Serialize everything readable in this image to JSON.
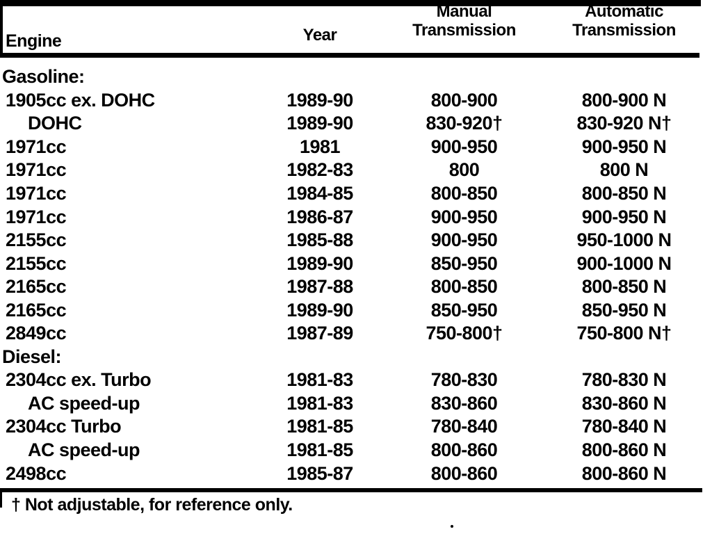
{
  "page": {
    "background_color": "#ffffff",
    "ink_color": "#000000"
  },
  "table": {
    "headers": {
      "engine": "Engine",
      "year": "Year",
      "manual": {
        "line1": "Manual",
        "line2": "Transmission"
      },
      "automatic": {
        "line1": "Automatic",
        "line2": "Transmission"
      }
    },
    "rows": [
      {
        "section": true,
        "indent": false,
        "engine": "Gasoline:",
        "year": "",
        "manual": "",
        "automatic": ""
      },
      {
        "section": false,
        "indent": false,
        "engine": "1905cc ex. DOHC",
        "year": "1989-90",
        "manual": "800-900",
        "automatic": "800-900 N"
      },
      {
        "section": false,
        "indent": true,
        "engine": "DOHC",
        "year": "1989-90",
        "manual": "830-920†",
        "automatic": "830-920 N†"
      },
      {
        "section": false,
        "indent": false,
        "engine": "1971cc",
        "year": "1981",
        "manual": "900-950",
        "automatic": "900-950 N"
      },
      {
        "section": false,
        "indent": false,
        "engine": "1971cc",
        "year": "1982-83",
        "manual": "800",
        "automatic": "800 N"
      },
      {
        "section": false,
        "indent": false,
        "engine": "1971cc",
        "year": "1984-85",
        "manual": "800-850",
        "automatic": "800-850 N"
      },
      {
        "section": false,
        "indent": false,
        "engine": "1971cc",
        "year": "1986-87",
        "manual": "900-950",
        "automatic": "900-950 N"
      },
      {
        "section": false,
        "indent": false,
        "engine": "2155cc",
        "year": "1985-88",
        "manual": "900-950",
        "automatic": "950-1000 N"
      },
      {
        "section": false,
        "indent": false,
        "engine": "2155cc",
        "year": "1989-90",
        "manual": "850-950",
        "automatic": "900-1000 N"
      },
      {
        "section": false,
        "indent": false,
        "engine": "2165cc",
        "year": "1987-88",
        "manual": "800-850",
        "automatic": "800-850 N"
      },
      {
        "section": false,
        "indent": false,
        "engine": "2165cc",
        "year": "1989-90",
        "manual": "850-950",
        "automatic": "850-950 N"
      },
      {
        "section": false,
        "indent": false,
        "engine": "2849cc",
        "year": "1987-89",
        "manual": "750-800†",
        "automatic": "750-800 N†"
      },
      {
        "section": true,
        "indent": false,
        "engine": "Diesel:",
        "year": "",
        "manual": "",
        "automatic": ""
      },
      {
        "section": false,
        "indent": false,
        "engine": "2304cc ex. Turbo",
        "year": "1981-83",
        "manual": "780-830",
        "automatic": "780-830 N"
      },
      {
        "section": false,
        "indent": true,
        "engine": "AC speed-up",
        "year": "1981-83",
        "manual": "830-860",
        "automatic": "830-860 N"
      },
      {
        "section": false,
        "indent": false,
        "engine": "2304cc Turbo",
        "year": "1981-85",
        "manual": "780-840",
        "automatic": "780-840 N"
      },
      {
        "section": false,
        "indent": true,
        "engine": "AC speed-up",
        "year": "1981-85",
        "manual": "800-860",
        "automatic": "800-860 N"
      },
      {
        "section": false,
        "indent": false,
        "engine": "2498cc",
        "year": "1985-87",
        "manual": "800-860",
        "automatic": "800-860 N"
      }
    ],
    "footnote": "† Not adjustable, for reference only."
  }
}
